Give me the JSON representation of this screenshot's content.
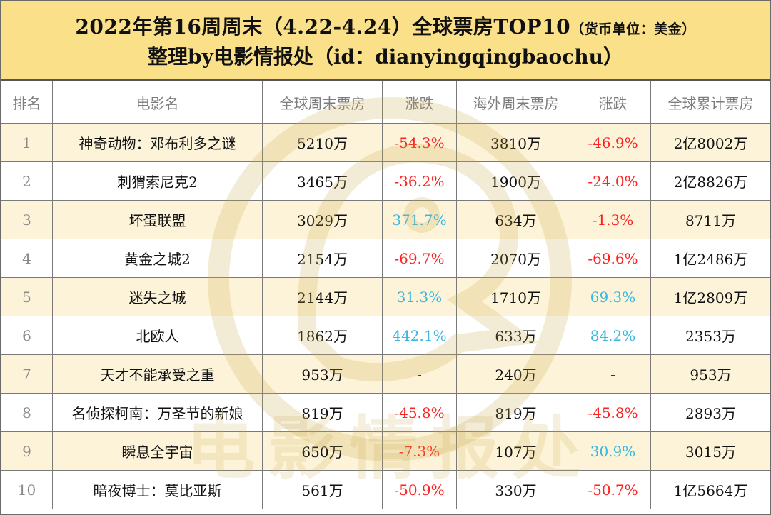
{
  "header": {
    "title_main": "2022年第16周周末（4.22-4.24）全球票房TOP10",
    "title_unit": "（货币单位：美金）",
    "subtitle": "整理by电影情报处（id：dianyingqingbaochu）"
  },
  "table": {
    "columns": [
      "排名",
      "电影名",
      "全球周末票房",
      "涨跌",
      "海外周末票房",
      "涨跌",
      "全球累计票房"
    ],
    "rows": [
      {
        "rank": "1",
        "name": "神奇动物：邓布利多之谜",
        "global_weekend": "5210万",
        "global_change": "-54.3%",
        "global_dir": "down",
        "overseas_weekend": "3810万",
        "overseas_change": "-46.9%",
        "overseas_dir": "down",
        "cumulative": "2亿8002万"
      },
      {
        "rank": "2",
        "name": "刺猬索尼克2",
        "global_weekend": "3465万",
        "global_change": "-36.2%",
        "global_dir": "down",
        "overseas_weekend": "1900万",
        "overseas_change": "-24.0%",
        "overseas_dir": "down",
        "cumulative": "2亿8826万"
      },
      {
        "rank": "3",
        "name": "坏蛋联盟",
        "global_weekend": "3029万",
        "global_change": "371.7%",
        "global_dir": "up",
        "overseas_weekend": "634万",
        "overseas_change": "-1.3%",
        "overseas_dir": "down",
        "cumulative": "8711万"
      },
      {
        "rank": "4",
        "name": "黄金之城2",
        "global_weekend": "2154万",
        "global_change": "-69.7%",
        "global_dir": "down",
        "overseas_weekend": "2070万",
        "overseas_change": "-69.6%",
        "overseas_dir": "down",
        "cumulative": "1亿2486万"
      },
      {
        "rank": "5",
        "name": "迷失之城",
        "global_weekend": "2144万",
        "global_change": "31.3%",
        "global_dir": "up",
        "overseas_weekend": "1710万",
        "overseas_change": "69.3%",
        "overseas_dir": "up",
        "cumulative": "1亿2809万"
      },
      {
        "rank": "6",
        "name": "北欧人",
        "global_weekend": "1862万",
        "global_change": "442.1%",
        "global_dir": "up",
        "overseas_weekend": "633万",
        "overseas_change": "84.2%",
        "overseas_dir": "up",
        "cumulative": "2353万"
      },
      {
        "rank": "7",
        "name": "天才不能承受之重",
        "global_weekend": "953万",
        "global_change": "-",
        "global_dir": "flat",
        "overseas_weekend": "240万",
        "overseas_change": "-",
        "overseas_dir": "flat",
        "cumulative": "953万"
      },
      {
        "rank": "8",
        "name": "名侦探柯南：万圣节的新娘",
        "global_weekend": "819万",
        "global_change": "-45.8%",
        "global_dir": "down",
        "overseas_weekend": "819万",
        "overseas_change": "-45.8%",
        "overseas_dir": "down",
        "cumulative": "2893万"
      },
      {
        "rank": "9",
        "name": "瞬息全宇宙",
        "global_weekend": "650万",
        "global_change": "-7.3%",
        "global_dir": "down",
        "overseas_weekend": "107万",
        "overseas_change": "30.9%",
        "overseas_dir": "up",
        "cumulative": "3015万"
      },
      {
        "rank": "10",
        "name": "暗夜博士：莫比亚斯",
        "global_weekend": "561万",
        "global_change": "-50.9%",
        "global_dir": "down",
        "overseas_weekend": "330万",
        "overseas_change": "-50.7%",
        "overseas_dir": "down",
        "cumulative": "1亿5664万"
      }
    ]
  },
  "watermark": {
    "text": "电影情报处",
    "icon": "duck-logo-icon",
    "color": "#e8d9a8"
  },
  "colors": {
    "header_bg": "#fbe08a",
    "row_highlight": "#fdf3d8",
    "down": "#ff2020",
    "up": "#3ab8e0"
  }
}
